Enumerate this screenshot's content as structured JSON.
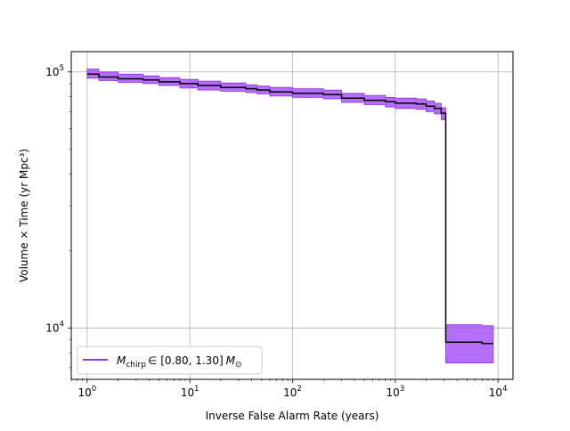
{
  "chart_data": {
    "type": "line",
    "title": "",
    "xlabel": "Inverse False Alarm Rate (years)",
    "ylabel": "Volume × Time (yr Mpc³)",
    "xscale": "log",
    "yscale": "log",
    "xlim": [
      0.7,
      14000
    ],
    "ylim": [
      6300,
      120000
    ],
    "grid": true,
    "legend_position": "lower-left",
    "x_ticks": [
      {
        "value": 1,
        "base": "10",
        "exp": "0"
      },
      {
        "value": 10,
        "base": "10",
        "exp": "1"
      },
      {
        "value": 100,
        "base": "10",
        "exp": "2"
      },
      {
        "value": 1000,
        "base": "10",
        "exp": "3"
      },
      {
        "value": 10000,
        "base": "10",
        "exp": "4"
      }
    ],
    "y_ticks": [
      {
        "value": 10000,
        "base": "10",
        "exp": "4"
      },
      {
        "value": 100000,
        "base": "10",
        "exp": "5"
      }
    ],
    "colors": {
      "line": "#000000",
      "band": "#a855f7",
      "band_edge": "#8b2cf5",
      "legend_line": "#7b1fe8",
      "grid": "#b0b0b0"
    },
    "series": [
      {
        "name": "M_chirp ∈ [0.80, 1.30] M_⊙",
        "x": [
          1.0,
          1.3,
          2.0,
          3.5,
          5.0,
          8.0,
          12,
          20,
          35,
          45,
          60,
          100,
          200,
          300,
          500,
          800,
          1000,
          1600,
          2000,
          2400,
          2800,
          3100,
          5000,
          7000,
          9000
        ],
        "y": [
          98000,
          95500,
          94000,
          93000,
          91500,
          90000,
          88500,
          87000,
          86000,
          85000,
          83500,
          82500,
          81500,
          79000,
          77500,
          76500,
          75500,
          75000,
          73500,
          72000,
          69000,
          8800,
          8800,
          8700,
          8700
        ],
        "lower": [
          94500,
          92500,
          91000,
          90000,
          88500,
          86500,
          85000,
          84000,
          83000,
          82000,
          80500,
          79500,
          78500,
          76000,
          74500,
          73000,
          72000,
          71500,
          70000,
          68500,
          65000,
          7300,
          7300,
          7300,
          7300
        ],
        "upper": [
          102500,
          100000,
          98000,
          96500,
          95000,
          93500,
          92000,
          90500,
          89000,
          88000,
          87000,
          86000,
          85000,
          82500,
          81000,
          79500,
          79000,
          78500,
          77000,
          75500,
          72500,
          10300,
          10300,
          10200,
          10200
        ]
      }
    ],
    "legend": {
      "symbol": "M",
      "subscript": "chirp",
      "range_text": "∈ [0.80, 1.30]",
      "unit_symbol": "M",
      "unit_subscript": "⊙"
    }
  }
}
